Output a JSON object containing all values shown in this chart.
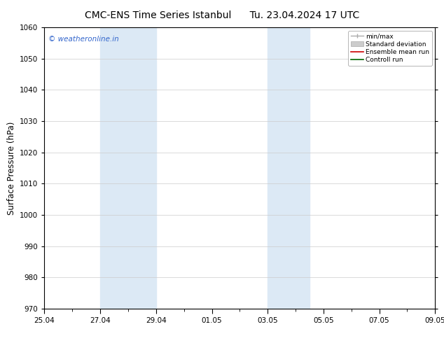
{
  "title_left": "CMC-ENS Time Series Istanbul",
  "title_right": "Tu. 23.04.2024 17 UTC",
  "ylabel": "Surface Pressure (hPa)",
  "ylim": [
    970,
    1060
  ],
  "yticks": [
    970,
    980,
    990,
    1000,
    1010,
    1020,
    1030,
    1040,
    1050,
    1060
  ],
  "background_color": "#ffffff",
  "plot_bg_color": "#ffffff",
  "xtick_labels": [
    "25.04",
    "27.04",
    "29.04",
    "01.05",
    "03.05",
    "05.05",
    "07.05",
    "09.05"
  ],
  "x_min": 0,
  "x_max": 14,
  "shaded_bands": [
    {
      "x_start": 2,
      "x_end": 4,
      "color": "#dce9f5"
    },
    {
      "x_start": 8,
      "x_end": 9.5,
      "color": "#dce9f5"
    }
  ],
  "watermark": "© weatheronline.in",
  "watermark_color": "#3366cc",
  "legend_labels": [
    "min/max",
    "Standard deviation",
    "Ensemble mean run",
    "Controll run"
  ],
  "legend_colors": [
    "#aaaaaa",
    "#cccccc",
    "#cc0000",
    "#006600"
  ],
  "title_fontsize": 10,
  "tick_fontsize": 7.5,
  "ylabel_fontsize": 8.5,
  "grid_color": "#cccccc",
  "axis_color": "#000000",
  "font_family": "DejaVu Sans"
}
